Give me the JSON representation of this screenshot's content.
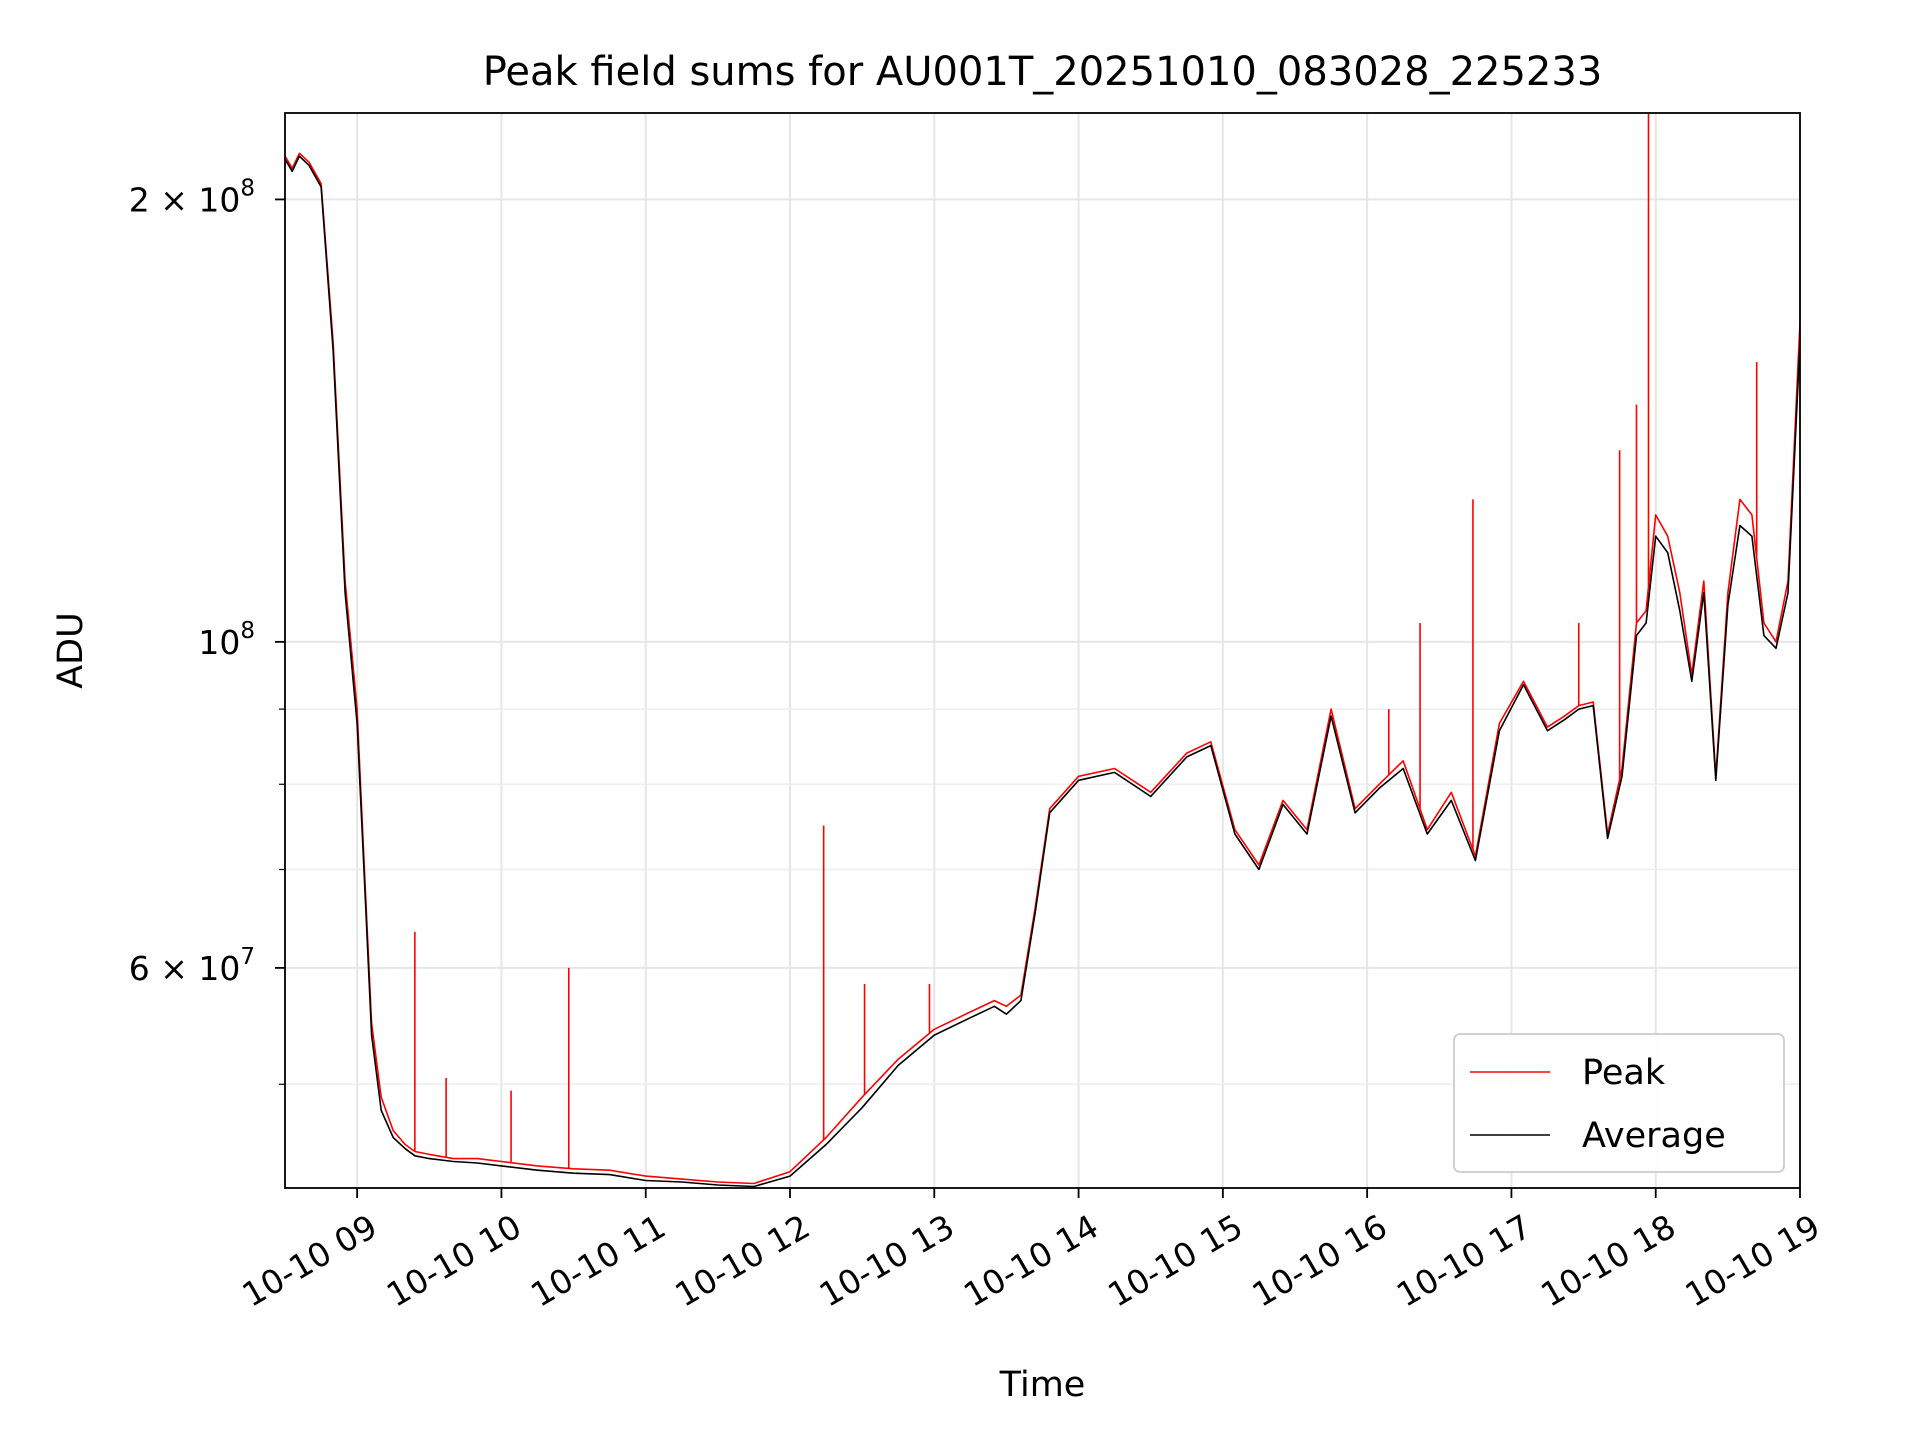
{
  "chart_data": {
    "type": "line",
    "title": "Peak field sums for AU001T_20251010_083028_225233",
    "xlabel": "Time",
    "ylabel": "ADU",
    "yscale": "log",
    "xlim": [
      "2025-10-10 08:30",
      "2025-10-10 19:00"
    ],
    "ylim": [
      42500000,
      229000000
    ],
    "grid": true,
    "legend_position": "lower-right",
    "x_ticks": [
      {
        "t": "2025-10-10 09:00",
        "label": "10-10 09"
      },
      {
        "t": "2025-10-10 10:00",
        "label": "10-10 10"
      },
      {
        "t": "2025-10-10 11:00",
        "label": "10-10 11"
      },
      {
        "t": "2025-10-10 12:00",
        "label": "10-10 12"
      },
      {
        "t": "2025-10-10 13:00",
        "label": "10-10 13"
      },
      {
        "t": "2025-10-10 14:00",
        "label": "10-10 14"
      },
      {
        "t": "2025-10-10 15:00",
        "label": "10-10 15"
      },
      {
        "t": "2025-10-10 16:00",
        "label": "10-10 16"
      },
      {
        "t": "2025-10-10 17:00",
        "label": "10-10 17"
      },
      {
        "t": "2025-10-10 18:00",
        "label": "10-10 18"
      },
      {
        "t": "2025-10-10 19:00",
        "label": "10-10 19"
      }
    ],
    "y_major_ticks": [
      {
        "v": 60000000,
        "base": "6 × 10",
        "exp": "7"
      },
      {
        "v": 100000000,
        "base": "10",
        "exp": "8"
      },
      {
        "v": 200000000,
        "base": "2 × 10",
        "exp": "8"
      }
    ],
    "y_minor_ticks": [
      50000000,
      70000000,
      80000000,
      90000000
    ],
    "series": [
      {
        "name": "Peak",
        "color": "#ff0000",
        "x": [
          "2025-10-10 08:30",
          "2025-10-10 08:33",
          "2025-10-10 08:36",
          "2025-10-10 08:40",
          "2025-10-10 08:45",
          "2025-10-10 08:50",
          "2025-10-10 08:55",
          "2025-10-10 09:00",
          "2025-10-10 09:03",
          "2025-10-10 09:06",
          "2025-10-10 09:10",
          "2025-10-10 09:15",
          "2025-10-10 09:20",
          "2025-10-10 09:24",
          "2025-10-10 09:30",
          "2025-10-10 09:40",
          "2025-10-10 09:50",
          "2025-10-10 10:00",
          "2025-10-10 10:15",
          "2025-10-10 10:30",
          "2025-10-10 10:45",
          "2025-10-10 11:00",
          "2025-10-10 11:15",
          "2025-10-10 11:30",
          "2025-10-10 11:45",
          "2025-10-10 12:00",
          "2025-10-10 12:15",
          "2025-10-10 12:30",
          "2025-10-10 12:45",
          "2025-10-10 13:00",
          "2025-10-10 13:15",
          "2025-10-10 13:25",
          "2025-10-10 13:30",
          "2025-10-10 13:36",
          "2025-10-10 13:42",
          "2025-10-10 13:48",
          "2025-10-10 14:00",
          "2025-10-10 14:15",
          "2025-10-10 14:30",
          "2025-10-10 14:45",
          "2025-10-10 14:55",
          "2025-10-10 15:05",
          "2025-10-10 15:15",
          "2025-10-10 15:25",
          "2025-10-10 15:35",
          "2025-10-10 15:45",
          "2025-10-10 15:55",
          "2025-10-10 16:05",
          "2025-10-10 16:15",
          "2025-10-10 16:25",
          "2025-10-10 16:35",
          "2025-10-10 16:45",
          "2025-10-10 16:55",
          "2025-10-10 17:05",
          "2025-10-10 17:15",
          "2025-10-10 17:22",
          "2025-10-10 17:28",
          "2025-10-10 17:34",
          "2025-10-10 17:40",
          "2025-10-10 17:46",
          "2025-10-10 17:52",
          "2025-10-10 17:56",
          "2025-10-10 18:00",
          "2025-10-10 18:05",
          "2025-10-10 18:10",
          "2025-10-10 18:15",
          "2025-10-10 18:20",
          "2025-10-10 18:25",
          "2025-10-10 18:30",
          "2025-10-10 18:35",
          "2025-10-10 18:40",
          "2025-10-10 18:45",
          "2025-10-10 18:50",
          "2025-10-10 18:55",
          "2025-10-10 19:00"
        ],
        "y": [
          214000000,
          210000000,
          215000000,
          212000000,
          205000000,
          160000000,
          110000000,
          90000000,
          70000000,
          55000000,
          49000000,
          46500000,
          45500000,
          45000000,
          44800000,
          44500000,
          44500000,
          44300000,
          44000000,
          43800000,
          43700000,
          43300000,
          43100000,
          42900000,
          42800000,
          43600000,
          46000000,
          49000000,
          52000000,
          54500000,
          56000000,
          57000000,
          56500000,
          57500000,
          66000000,
          77000000,
          81000000,
          82000000,
          79000000,
          84000000,
          85500000,
          74500000,
          70500000,
          78000000,
          74500000,
          90000000,
          77000000,
          80000000,
          83000000,
          74500000,
          79000000,
          71500000,
          88000000,
          94000000,
          87500000,
          89000000,
          90500000,
          91000000,
          74000000,
          82000000,
          103000000,
          105000000,
          122000000,
          118000000,
          108000000,
          95000000,
          110000000,
          81000000,
          108000000,
          125000000,
          122000000,
          103000000,
          100000000,
          110000000,
          165000000
        ],
        "spikes": [
          {
            "t": "2025-10-10 09:24",
            "y": 63500000
          },
          {
            "t": "2025-10-10 09:37",
            "y": 50500000
          },
          {
            "t": "2025-10-10 10:04",
            "y": 49500000
          },
          {
            "t": "2025-10-10 10:28",
            "y": 60000000
          },
          {
            "t": "2025-10-10 12:14",
            "y": 75000000
          },
          {
            "t": "2025-10-10 12:31",
            "y": 58500000
          },
          {
            "t": "2025-10-10 12:58",
            "y": 58500000
          },
          {
            "t": "2025-10-10 16:09",
            "y": 90000000
          },
          {
            "t": "2025-10-10 16:22",
            "y": 103000000
          },
          {
            "t": "2025-10-10 16:44",
            "y": 125000000
          },
          {
            "t": "2025-10-10 17:28",
            "y": 103000000
          },
          {
            "t": "2025-10-10 17:45",
            "y": 135000000
          },
          {
            "t": "2025-10-10 17:52",
            "y": 145000000
          },
          {
            "t": "2025-10-10 17:57",
            "y": 229000000
          },
          {
            "t": "2025-10-10 18:42",
            "y": 155000000
          }
        ]
      },
      {
        "name": "Average",
        "color": "#000000",
        "x": [
          "2025-10-10 08:30",
          "2025-10-10 08:33",
          "2025-10-10 08:36",
          "2025-10-10 08:40",
          "2025-10-10 08:45",
          "2025-10-10 08:50",
          "2025-10-10 08:55",
          "2025-10-10 09:00",
          "2025-10-10 09:03",
          "2025-10-10 09:06",
          "2025-10-10 09:10",
          "2025-10-10 09:15",
          "2025-10-10 09:20",
          "2025-10-10 09:24",
          "2025-10-10 09:30",
          "2025-10-10 09:40",
          "2025-10-10 09:50",
          "2025-10-10 10:00",
          "2025-10-10 10:15",
          "2025-10-10 10:30",
          "2025-10-10 10:45",
          "2025-10-10 11:00",
          "2025-10-10 11:15",
          "2025-10-10 11:30",
          "2025-10-10 11:45",
          "2025-10-10 12:00",
          "2025-10-10 12:15",
          "2025-10-10 12:30",
          "2025-10-10 12:45",
          "2025-10-10 13:00",
          "2025-10-10 13:15",
          "2025-10-10 13:25",
          "2025-10-10 13:30",
          "2025-10-10 13:36",
          "2025-10-10 13:42",
          "2025-10-10 13:48",
          "2025-10-10 14:00",
          "2025-10-10 14:15",
          "2025-10-10 14:30",
          "2025-10-10 14:45",
          "2025-10-10 14:55",
          "2025-10-10 15:05",
          "2025-10-10 15:15",
          "2025-10-10 15:25",
          "2025-10-10 15:35",
          "2025-10-10 15:45",
          "2025-10-10 15:55",
          "2025-10-10 16:05",
          "2025-10-10 16:15",
          "2025-10-10 16:25",
          "2025-10-10 16:35",
          "2025-10-10 16:45",
          "2025-10-10 16:55",
          "2025-10-10 17:05",
          "2025-10-10 17:15",
          "2025-10-10 17:22",
          "2025-10-10 17:28",
          "2025-10-10 17:34",
          "2025-10-10 17:40",
          "2025-10-10 17:46",
          "2025-10-10 17:52",
          "2025-10-10 17:56",
          "2025-10-10 18:00",
          "2025-10-10 18:05",
          "2025-10-10 18:10",
          "2025-10-10 18:15",
          "2025-10-10 18:20",
          "2025-10-10 18:25",
          "2025-10-10 18:30",
          "2025-10-10 18:35",
          "2025-10-10 18:40",
          "2025-10-10 18:45",
          "2025-10-10 18:50",
          "2025-10-10 18:55",
          "2025-10-10 19:00"
        ],
        "y": [
          213000000,
          209000000,
          214000000,
          211000000,
          204000000,
          158000000,
          108000000,
          88000000,
          69000000,
          54000000,
          48000000,
          46000000,
          45200000,
          44700000,
          44500000,
          44300000,
          44200000,
          44000000,
          43700000,
          43500000,
          43400000,
          43000000,
          42900000,
          42700000,
          42600000,
          43300000,
          45500000,
          48200000,
          51500000,
          54000000,
          55500000,
          56500000,
          55800000,
          57000000,
          65500000,
          76500000,
          80500000,
          81500000,
          78500000,
          83500000,
          85000000,
          74000000,
          70000000,
          77500000,
          74000000,
          89000000,
          76500000,
          79500000,
          82000000,
          74000000,
          78000000,
          71000000,
          87000000,
          93500000,
          87000000,
          88500000,
          90000000,
          90500000,
          73500000,
          81000000,
          101000000,
          103000000,
          118000000,
          115000000,
          105000000,
          94000000,
          108000000,
          80500000,
          106000000,
          120000000,
          118000000,
          101000000,
          99000000,
          108000000,
          160000000
        ]
      }
    ]
  }
}
